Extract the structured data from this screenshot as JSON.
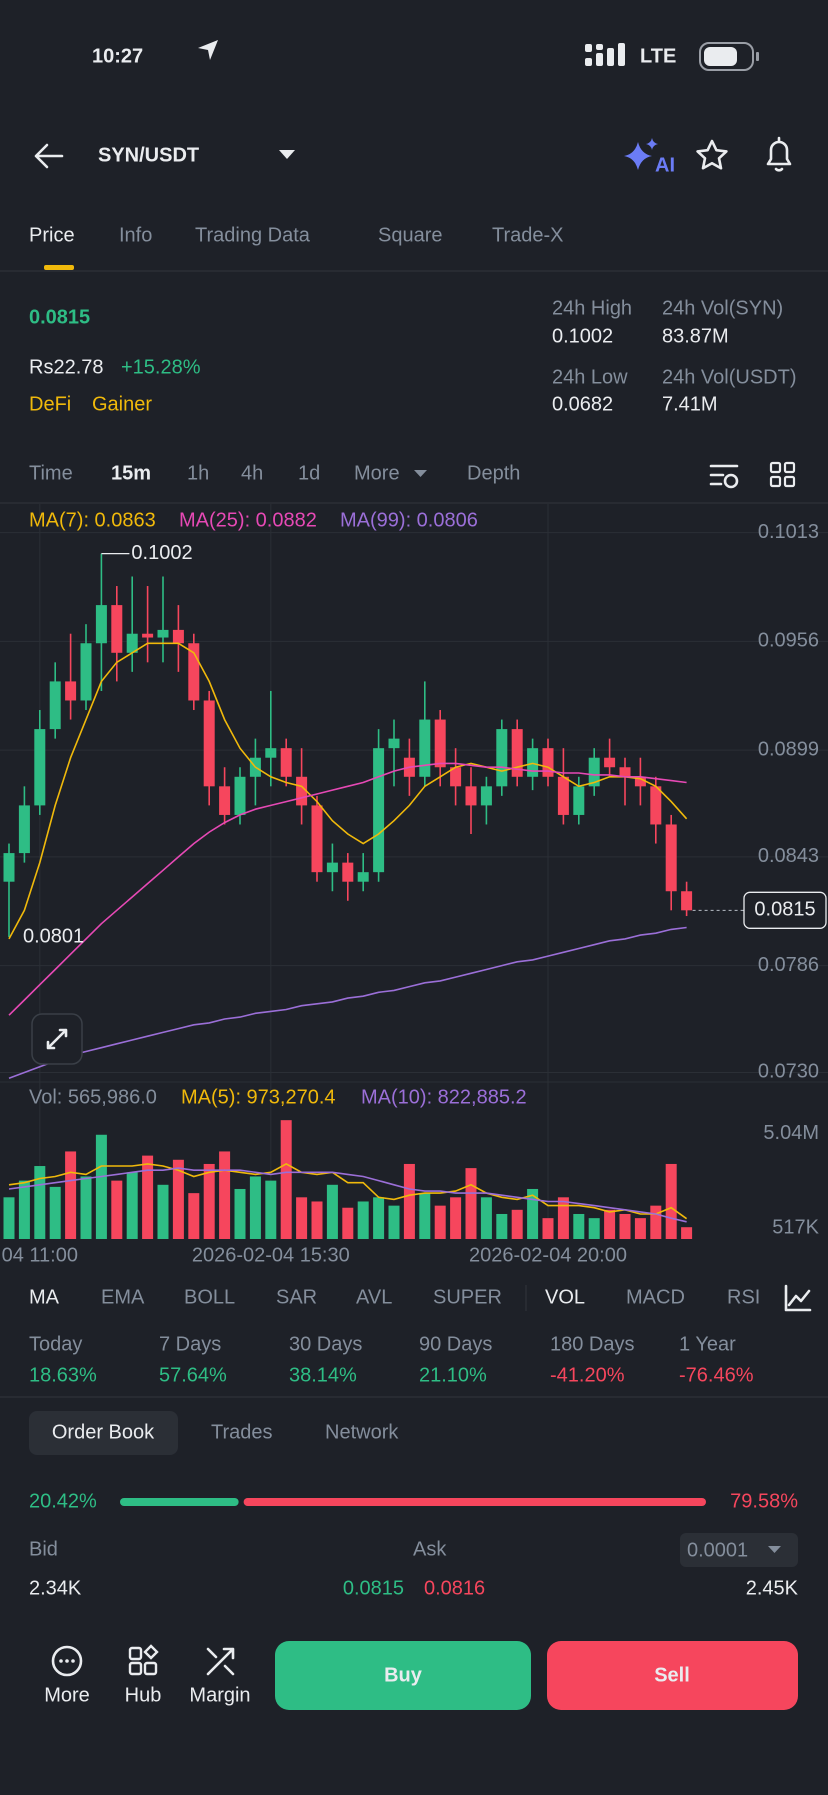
{
  "status_bar": {
    "time": "10:27",
    "network": "LTE"
  },
  "header": {
    "pair": "SYN/USDT"
  },
  "tabs": [
    "Price",
    "Info",
    "Trading Data",
    "Square",
    "Trade-X"
  ],
  "ticker": {
    "price": "0.0815",
    "local_price": "Rs22.78",
    "change": "+15.28%",
    "tags": [
      "DeFi",
      "Gainer"
    ]
  },
  "stats": [
    {
      "label": "24h High",
      "value": "0.1002"
    },
    {
      "label": "24h Vol(SYN)",
      "value": "83.87M"
    },
    {
      "label": "24h Low",
      "value": "0.0682"
    },
    {
      "label": "24h Vol(USDT)",
      "value": "7.41M"
    }
  ],
  "timeframes": [
    "Time",
    "15m",
    "1h",
    "4h",
    "1d",
    "More",
    "Depth"
  ],
  "chart_data": {
    "type": "candlestick",
    "categories": [
      null,
      null,
      "04 11:00",
      null,
      null,
      null,
      null,
      null,
      null,
      null,
      null,
      null,
      null,
      null,
      null,
      null,
      null,
      "2026-02-04 15:30",
      null,
      null,
      null,
      null,
      null,
      null,
      null,
      null,
      null,
      null,
      null,
      null,
      null,
      null,
      null,
      null,
      null,
      "2026-02-04 20:00",
      null,
      null,
      null,
      null,
      null,
      null,
      null,
      null,
      null
    ],
    "up_color": "#2ebd85",
    "down_color": "#f6465d",
    "candles": {
      "open": [
        0.083,
        0.0845,
        0.087,
        0.091,
        0.0935,
        0.0925,
        0.0955,
        0.0975,
        0.095,
        0.096,
        0.0958,
        0.0962,
        0.0955,
        0.0925,
        0.088,
        0.0865,
        0.0885,
        0.0895,
        0.09,
        0.0885,
        0.087,
        0.0835,
        0.084,
        0.083,
        0.0835,
        0.09,
        0.0895,
        0.0885,
        0.0915,
        0.089,
        0.088,
        0.087,
        0.088,
        0.091,
        0.0885,
        0.09,
        0.0885,
        0.0865,
        0.088,
        0.0895,
        0.089,
        0.0885,
        0.088,
        0.086,
        0.0825
      ],
      "high": [
        0.085,
        0.088,
        0.092,
        0.0945,
        0.096,
        0.0965,
        0.1002,
        0.0985,
        0.099,
        0.0985,
        0.099,
        0.0975,
        0.096,
        0.093,
        0.089,
        0.089,
        0.0905,
        0.093,
        0.0905,
        0.09,
        0.0875,
        0.085,
        0.0845,
        0.0845,
        0.091,
        0.0915,
        0.0905,
        0.0935,
        0.092,
        0.09,
        0.089,
        0.0885,
        0.0915,
        0.0915,
        0.0905,
        0.0905,
        0.09,
        0.0885,
        0.09,
        0.0905,
        0.0895,
        0.0895,
        0.0885,
        0.0865,
        0.083
      ],
      "low": [
        0.0801,
        0.084,
        0.0865,
        0.0905,
        0.0915,
        0.092,
        0.093,
        0.0935,
        0.094,
        0.0945,
        0.0945,
        0.094,
        0.092,
        0.087,
        0.086,
        0.086,
        0.087,
        0.088,
        0.088,
        0.086,
        0.083,
        0.0825,
        0.082,
        0.0825,
        0.083,
        0.088,
        0.0875,
        0.088,
        0.088,
        0.087,
        0.0855,
        0.086,
        0.0875,
        0.088,
        0.0878,
        0.088,
        0.086,
        0.086,
        0.0875,
        0.0885,
        0.087,
        0.087,
        0.085,
        0.0815,
        0.0812
      ],
      "close": [
        0.0845,
        0.087,
        0.091,
        0.0935,
        0.0925,
        0.0955,
        0.0975,
        0.095,
        0.096,
        0.0958,
        0.0962,
        0.0955,
        0.0925,
        0.088,
        0.0865,
        0.0885,
        0.0895,
        0.09,
        0.0885,
        0.087,
        0.0835,
        0.084,
        0.083,
        0.0835,
        0.09,
        0.0905,
        0.0885,
        0.0915,
        0.089,
        0.088,
        0.087,
        0.088,
        0.091,
        0.0885,
        0.09,
        0.0885,
        0.0865,
        0.088,
        0.0895,
        0.089,
        0.0885,
        0.088,
        0.086,
        0.0825,
        0.0815
      ]
    },
    "series": [
      {
        "name": "MA(7): 0.0863",
        "color": "#f0b90b",
        "values": [
          0.08,
          0.0815,
          0.084,
          0.087,
          0.0895,
          0.0915,
          0.0935,
          0.0945,
          0.095,
          0.0955,
          0.0955,
          0.0955,
          0.095,
          0.0935,
          0.0915,
          0.09,
          0.089,
          0.0885,
          0.0882,
          0.088,
          0.0872,
          0.0862,
          0.0855,
          0.085,
          0.0855,
          0.0862,
          0.087,
          0.088,
          0.0885,
          0.089,
          0.0892,
          0.089,
          0.0888,
          0.089,
          0.0892,
          0.089,
          0.0885,
          0.088,
          0.0882,
          0.0885,
          0.0885,
          0.0884,
          0.088,
          0.0872,
          0.0863
        ]
      },
      {
        "name": "MA(25): 0.0882",
        "color": "#e649b5",
        "values": [
          0.076,
          0.0768,
          0.0776,
          0.0784,
          0.0792,
          0.08,
          0.0808,
          0.0815,
          0.0822,
          0.0829,
          0.0836,
          0.0843,
          0.085,
          0.0856,
          0.0861,
          0.0865,
          0.0868,
          0.087,
          0.0872,
          0.0874,
          0.0876,
          0.0878,
          0.088,
          0.0882,
          0.0885,
          0.0888,
          0.089,
          0.0891,
          0.0892,
          0.0892,
          0.0891,
          0.089,
          0.089,
          0.0889,
          0.0888,
          0.0888,
          0.0887,
          0.0887,
          0.0886,
          0.0886,
          0.0885,
          0.0885,
          0.0884,
          0.0883,
          0.0882
        ]
      },
      {
        "name": "MA(99): 0.0806",
        "color": "#9b6fd8",
        "values": [
          0.0727,
          0.073,
          0.0733,
          0.0736,
          0.0739,
          0.0741,
          0.0743,
          0.0745,
          0.0747,
          0.0749,
          0.0751,
          0.0753,
          0.0755,
          0.0756,
          0.0758,
          0.0759,
          0.0761,
          0.0762,
          0.0763,
          0.0765,
          0.0766,
          0.0767,
          0.0769,
          0.077,
          0.0772,
          0.0773,
          0.0775,
          0.0777,
          0.0778,
          0.078,
          0.0782,
          0.0784,
          0.0786,
          0.0788,
          0.0789,
          0.0791,
          0.0793,
          0.0795,
          0.0797,
          0.0799,
          0.08,
          0.0802,
          0.0803,
          0.0805,
          0.0806
        ]
      }
    ],
    "annotations": [
      "0.1002",
      "0.0801",
      "0.0815"
    ],
    "ylim": [
      0.0725,
      0.1028
    ],
    "yticks": [
      0.1013,
      0.0956,
      0.0899,
      0.0843,
      0.0786,
      {
        "value": 0.073,
        "label": "0.0730"
      }
    ],
    "grid": true,
    "volume": {
      "label": "Vol: 565,986.0",
      "values": [
        2000000,
        2800000,
        3500000,
        2500000,
        4200000,
        3000000,
        5000000,
        2800000,
        3200000,
        4000000,
        2600000,
        3800000,
        2200000,
        3600000,
        4200000,
        2400000,
        3000000,
        2800000,
        5700000,
        2000000,
        1800000,
        2600000,
        1500000,
        1800000,
        2000000,
        1600000,
        3600000,
        2200000,
        1600000,
        2000000,
        3400000,
        2000000,
        1200000,
        1400000,
        2400000,
        1000000,
        2000000,
        1200000,
        1000000,
        1400000,
        1200000,
        1000000,
        1600000,
        3600000,
        565986
      ],
      "series": [
        {
          "name": "MA(5): 973,270.4",
          "color": "#f0b90b",
          "values": [
            2600000,
            2700000,
            2900000,
            3000000,
            3200000,
            3100000,
            3500000,
            3500000,
            3500000,
            3600000,
            3500000,
            3300000,
            3000000,
            3200000,
            3300000,
            3200000,
            3100000,
            3200000,
            3600000,
            3200000,
            3100000,
            3200000,
            2700000,
            2700000,
            2000000,
            1900000,
            2100000,
            2200000,
            2200000,
            2300000,
            2600000,
            2200000,
            2000000,
            1900000,
            2100000,
            1600000,
            1600000,
            1600000,
            1500000,
            1300000,
            1400000,
            1200000,
            1200000,
            1500000,
            973270.4
          ]
        },
        {
          "name": "MA(10): 822,885.2",
          "color": "#9b6fd8",
          "values": [
            2400000,
            2500000,
            2600000,
            2700000,
            2800000,
            2900000,
            3000000,
            3100000,
            3200000,
            3300000,
            3300000,
            3400000,
            3300000,
            3300000,
            3300000,
            3300000,
            3200000,
            3100000,
            3200000,
            3200000,
            3200000,
            3200000,
            3100000,
            3000000,
            2800000,
            2600000,
            2400000,
            2300000,
            2300000,
            2200000,
            2200000,
            2200000,
            2100000,
            2000000,
            1900000,
            1800000,
            1800000,
            1700000,
            1600000,
            1500000,
            1400000,
            1300000,
            1200000,
            1000000,
            822885.2
          ]
        }
      ],
      "ylim": [
        0,
        5900000
      ],
      "yticks": [
        {
          "value": 5040000,
          "label": "5.04M"
        },
        {
          "value": 517000,
          "label": "517K"
        }
      ]
    }
  },
  "indicators": [
    "MA",
    "EMA",
    "BOLL",
    "SAR",
    "AVL",
    "SUPER",
    "VOL",
    "MACD",
    "RSI"
  ],
  "performance": [
    {
      "label": "Today",
      "value": "18.63%"
    },
    {
      "label": "7 Days",
      "value": "57.64%"
    },
    {
      "label": "30 Days",
      "value": "38.14%"
    },
    {
      "label": "90 Days",
      "value": "21.10%"
    },
    {
      "label": "180 Days",
      "value": "-41.20%"
    },
    {
      "label": "1 Year",
      "value": "-76.46%"
    }
  ],
  "order_book": {
    "tabs": [
      "Order Book",
      "Trades",
      "Network"
    ],
    "ratio": {
      "values": [
        20.42,
        79.58
      ],
      "value_labels": [
        "20.42%",
        "79.58%"
      ]
    },
    "headers": [
      "Bid",
      "Ask"
    ],
    "precision": "0.0001",
    "rows": [
      [
        "2.34K",
        "0.0815",
        "0.0816",
        "2.45K"
      ]
    ]
  },
  "bottom_bar": {
    "items": [
      "More",
      "Hub",
      "Margin"
    ],
    "buy": "Buy",
    "sell": "Sell"
  }
}
